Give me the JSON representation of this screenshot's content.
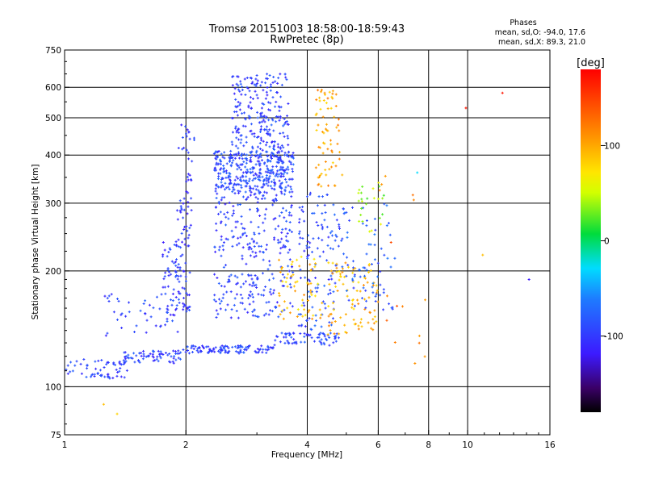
{
  "chart_data": {
    "type": "scatter",
    "title": "Tromsø 20151003 18:58:00-18:59:43",
    "subtitle": "RwPretec (8p)",
    "xlabel": "Frequency [MHz]",
    "ylabel": "Stationary phase Virtual Height [km]",
    "x_scale": "log",
    "y_scale": "log",
    "xlim": [
      1,
      16
    ],
    "ylim": [
      75,
      750
    ],
    "x_ticks": [
      1,
      2,
      4,
      6,
      8,
      10,
      16
    ],
    "y_ticks": [
      75,
      100,
      200,
      300,
      400,
      500,
      600,
      750
    ],
    "x_gridlines": [
      2,
      4,
      6,
      8,
      10
    ],
    "y_gridlines": [
      100,
      200,
      300,
      400,
      500,
      600
    ],
    "grid": true,
    "stats": {
      "heading": "Phases",
      "line_o": "mean, sd,O: -94.0, 17.6",
      "line_x": "mean, sd,X: 89.3, 21.0"
    },
    "colorbar": {
      "label": "[deg]",
      "range": [
        -180,
        180
      ],
      "ticks": [
        100,
        0,
        -100
      ],
      "tick_labels": [
        "100",
        "0",
        "-100"
      ]
    },
    "clusters": [
      {
        "x": [
          1.0,
          1.45
        ],
        "y": [
          105,
          118
        ],
        "phase": -95,
        "count": 60
      },
      {
        "x": [
          1.4,
          1.95
        ],
        "y": [
          115,
          124
        ],
        "phase": -95,
        "count": 70
      },
      {
        "x": [
          1.95,
          3.3
        ],
        "y": [
          122,
          128
        ],
        "phase": -95,
        "count": 110
      },
      {
        "x": [
          3.3,
          4.8
        ],
        "y": [
          128,
          138
        ],
        "phase": -90,
        "count": 70
      },
      {
        "x": [
          1.25,
          1.95
        ],
        "y": [
          135,
          175
        ],
        "phase": -95,
        "count": 45
      },
      {
        "x": [
          1.75,
          2.05
        ],
        "y": [
          150,
          240
        ],
        "phase": -100,
        "count": 90
      },
      {
        "x": [
          1.9,
          2.1
        ],
        "y": [
          240,
          490
        ],
        "phase": -100,
        "count": 55
      },
      {
        "x": [
          2.35,
          3.7
        ],
        "y": [
          320,
          410
        ],
        "phase": -90,
        "count": 380
      },
      {
        "x": [
          2.35,
          3.7
        ],
        "y": [
          150,
          320
        ],
        "phase": -95,
        "count": 300
      },
      {
        "x": [
          2.6,
          3.6
        ],
        "y": [
          410,
          650
        ],
        "phase": -95,
        "count": 220
      },
      {
        "x": [
          3.8,
          4.8
        ],
        "y": [
          140,
          320
        ],
        "phase": -90,
        "count": 120
      },
      {
        "x": [
          4.2,
          4.9
        ],
        "y": [
          330,
          600
        ],
        "phase": 100,
        "count": 70
      },
      {
        "x": [
          3.4,
          4.4
        ],
        "y": [
          150,
          220
        ],
        "phase": 90,
        "count": 60
      },
      {
        "x": [
          4.5,
          6.0
        ],
        "y": [
          135,
          210
        ],
        "phase": 95,
        "count": 90
      },
      {
        "x": [
          4.8,
          6.6
        ],
        "y": [
          155,
          300
        ],
        "phase": -80,
        "count": 80
      },
      {
        "x": [
          5.3,
          6.2
        ],
        "y": [
          250,
          340
        ],
        "phase": 40,
        "count": 25
      },
      {
        "x": [
          6.0,
          8.0
        ],
        "y": [
          115,
          380
        ],
        "phase": 120,
        "count": 15
      }
    ],
    "points": [
      {
        "x": 9.9,
        "y": 530,
        "phase": 170
      },
      {
        "x": 12.2,
        "y": 580,
        "phase": 170
      },
      {
        "x": 14.2,
        "y": 190,
        "phase": -120
      },
      {
        "x": 10.9,
        "y": 220,
        "phase": 90
      },
      {
        "x": 7.4,
        "y": 115,
        "phase": 110
      },
      {
        "x": 1.25,
        "y": 90,
        "phase": 90
      },
      {
        "x": 1.35,
        "y": 85,
        "phase": 80
      },
      {
        "x": 7.5,
        "y": 360,
        "phase": -30
      }
    ]
  }
}
